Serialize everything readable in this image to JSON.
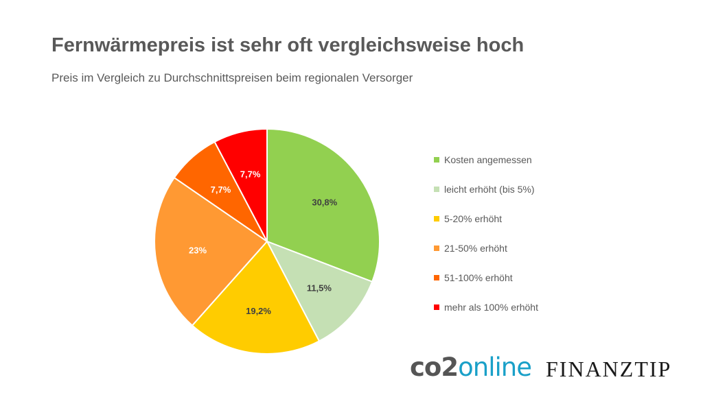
{
  "header": {
    "title": "Fernwärmepreis ist sehr oft vergleichsweise hoch",
    "subtitle": "Preis im Vergleich zu Durchschnittspreisen beim regionalen Versorger"
  },
  "chart_data": {
    "type": "pie",
    "title": "Fernwärmepreis ist sehr oft vergleichsweise hoch",
    "subtitle": "Preis im Vergleich zu Durchschnittspreisen beim regionalen Versorger",
    "legend_position": "right",
    "slices": [
      {
        "name": "Kosten angemessen",
        "value": 30.8,
        "label": "30,8%",
        "color": "#92d050"
      },
      {
        "name": "leicht erhöht (bis 5%)",
        "value": 11.5,
        "label": "11,5%",
        "color": "#c5e0b4"
      },
      {
        "name": "5-20% erhöht",
        "value": 19.2,
        "label": "19,2%",
        "color": "#ffcc00"
      },
      {
        "name": "21-50% erhöht",
        "value": 23,
        "label": "23%",
        "color": "#ff9933"
      },
      {
        "name": "51-100% erhöht",
        "value": 7.7,
        "label": "7,7%",
        "color": "#ff6600"
      },
      {
        "name": "mehr als 100% erhöht",
        "value": 7.7,
        "label": "7,7%",
        "color": "#ff0000"
      }
    ]
  },
  "logos": {
    "co2_part1": "co2",
    "co2_part2": "online",
    "finanztip": "FINANZTIP"
  }
}
